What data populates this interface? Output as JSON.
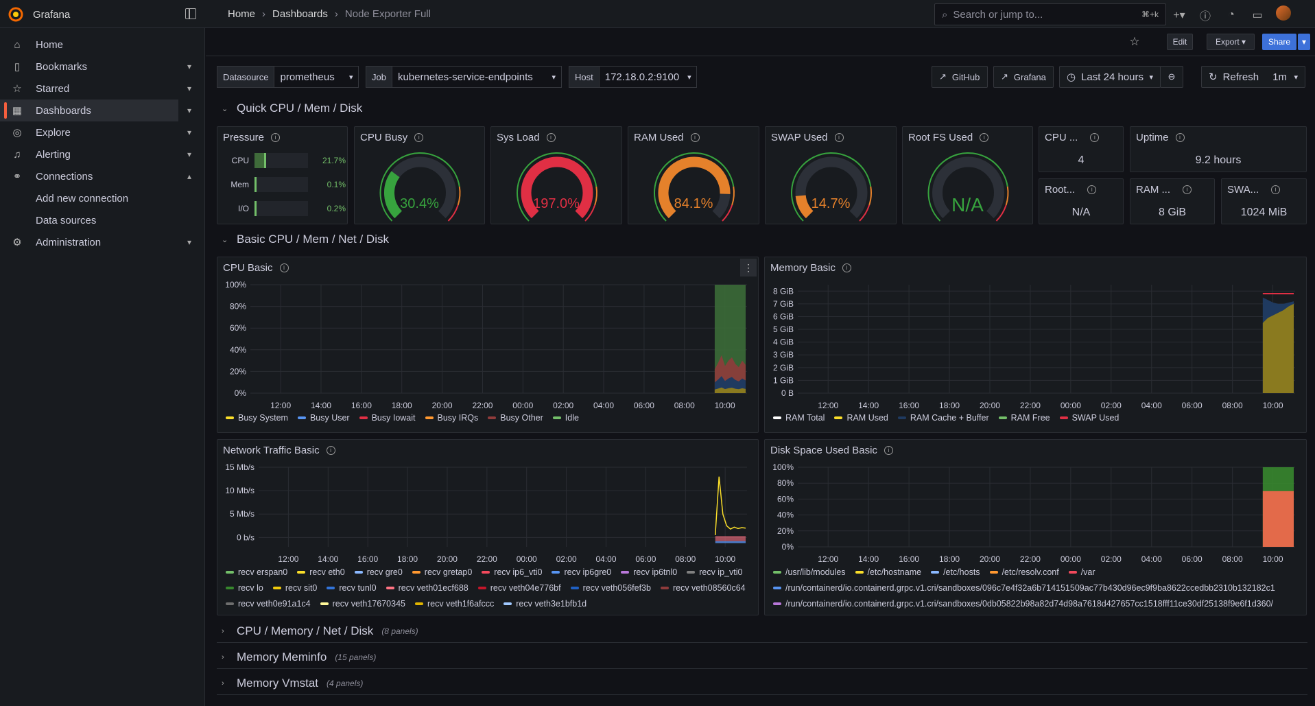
{
  "app": {
    "name": "Grafana"
  },
  "breadcrumb": [
    "Home",
    "Dashboards",
    "Node Exporter Full"
  ],
  "search": {
    "placeholder": "Search or jump to...",
    "shortcut": "⌘+k"
  },
  "nav": {
    "items": [
      {
        "label": "Home",
        "icon": "home-icon"
      },
      {
        "label": "Bookmarks",
        "icon": "bookmark-icon"
      },
      {
        "label": "Starred",
        "icon": "star-icon"
      },
      {
        "label": "Dashboards",
        "icon": "dashboards-icon"
      },
      {
        "label": "Explore",
        "icon": "compass-icon"
      },
      {
        "label": "Alerting",
        "icon": "bell-icon"
      },
      {
        "label": "Connections",
        "icon": "connections-icon"
      },
      {
        "label": "Add new connection"
      },
      {
        "label": "Data sources"
      },
      {
        "label": "Administration",
        "icon": "gear-icon"
      }
    ]
  },
  "toolbar": {
    "edit": "Edit",
    "export": "Export",
    "share": "Share"
  },
  "vars": {
    "datasource_label": "Datasource",
    "datasource": "prometheus",
    "job_label": "Job",
    "job": "kubernetes-service-endpoints",
    "host_label": "Host",
    "host": "172.18.0.2:9100"
  },
  "links": {
    "github": "GitHub",
    "grafana": "Grafana"
  },
  "time": {
    "range": "Last 24 hours",
    "refresh": "Refresh",
    "interval": "1m"
  },
  "rows": {
    "quick": "Quick CPU / Mem / Disk",
    "basic": "Basic CPU / Mem / Net / Disk",
    "collapsed": [
      {
        "title": "CPU / Memory / Net / Disk",
        "count": "(8 panels)"
      },
      {
        "title": "Memory Meminfo",
        "count": "(15 panels)"
      },
      {
        "title": "Memory Vmstat",
        "count": "(4 panels)"
      }
    ]
  },
  "pressure": {
    "title": "Pressure",
    "items": [
      {
        "label": "CPU",
        "value": "21.7%",
        "level": 0.217
      },
      {
        "label": "Mem",
        "value": "0.1%",
        "level": 0.001
      },
      {
        "label": "I/O",
        "value": "0.2%",
        "level": 0.002
      }
    ]
  },
  "gauges": [
    {
      "title": "CPU Busy",
      "value": "30.4%",
      "level": 0.304,
      "color": "#37a33e"
    },
    {
      "title": "Sys Load",
      "value": "197.0%",
      "level": 1.0,
      "color": "#e02f44"
    },
    {
      "title": "RAM Used",
      "value": "84.1%",
      "level": 0.841,
      "color": "#e5812b"
    },
    {
      "title": "SWAP Used",
      "value": "14.7%",
      "level": 0.147,
      "color": "#e5812b"
    },
    {
      "title": "Root FS Used",
      "value": "N/A",
      "level": 0,
      "color": "#37a33e"
    }
  ],
  "stats": [
    {
      "title": "CPU ...",
      "value": "4"
    },
    {
      "title": "Uptime",
      "value": "9.2 hours"
    },
    {
      "title": "Root...",
      "value": "N/A"
    },
    {
      "title": "RAM ...",
      "value": "8 GiB"
    },
    {
      "title": "SWA...",
      "value": "1024 MiB"
    }
  ],
  "panels": {
    "cpu": "CPU Basic",
    "mem": "Memory Basic",
    "net": "Network Traffic Basic",
    "disk": "Disk Space Used Basic"
  },
  "chart_data": [
    {
      "type": "area",
      "title": "CPU Basic",
      "x": [
        "12:00",
        "14:00",
        "16:00",
        "18:00",
        "20:00",
        "22:00",
        "00:00",
        "02:00",
        "04:00",
        "06:00",
        "08:00",
        "10:00"
      ],
      "yticks": [
        "0%",
        "20%",
        "40%",
        "60%",
        "80%",
        "100%"
      ],
      "ylim": [
        0,
        100
      ],
      "series": [
        {
          "name": "Busy System",
          "color": "#fade2a"
        },
        {
          "name": "Busy User",
          "color": "#5794f2"
        },
        {
          "name": "Busy Iowait",
          "color": "#e02f44"
        },
        {
          "name": "Busy IRQs",
          "color": "#ff9830"
        },
        {
          "name": "Busy Other",
          "color": "#8f3b3b"
        },
        {
          "name": "Idle",
          "color": "#73bf69"
        }
      ],
      "tail": {
        "from": "09:30",
        "idle": 100,
        "busy": [
          22,
          28,
          35,
          25,
          30,
          33,
          27,
          24,
          30,
          26
        ]
      }
    },
    {
      "type": "area",
      "title": "Memory Basic",
      "x": [
        "12:00",
        "14:00",
        "16:00",
        "18:00",
        "20:00",
        "22:00",
        "00:00",
        "02:00",
        "04:00",
        "06:00",
        "08:00",
        "10:00"
      ],
      "yticks": [
        "0 B",
        "1 GiB",
        "2 GiB",
        "3 GiB",
        "4 GiB",
        "5 GiB",
        "6 GiB",
        "7 GiB",
        "8 GiB"
      ],
      "ylim": [
        0,
        8.5
      ],
      "series": [
        {
          "name": "RAM Total",
          "color": "#ffffff"
        },
        {
          "name": "RAM Used",
          "color": "#fade2a"
        },
        {
          "name": "RAM Cache + Buffer",
          "color": "#1f3a60"
        },
        {
          "name": "RAM Free",
          "color": "#73bf69"
        },
        {
          "name": "SWAP Used",
          "color": "#e02f44"
        }
      ],
      "tail": {
        "from": "09:30",
        "total": 7.8,
        "used": [
          5.5,
          5.9,
          6.1,
          6.3,
          6.5,
          6.8,
          7.0
        ],
        "cache": [
          7.5,
          7.3,
          7.1,
          7.0,
          7.0,
          7.1,
          7.2
        ]
      }
    },
    {
      "type": "line",
      "title": "Network Traffic Basic",
      "x": [
        "12:00",
        "14:00",
        "16:00",
        "18:00",
        "20:00",
        "22:00",
        "00:00",
        "02:00",
        "04:00",
        "06:00",
        "08:00",
        "10:00"
      ],
      "yticks": [
        "0 b/s",
        "5 Mb/s",
        "10 Mb/s",
        "15 Mb/s"
      ],
      "ylim": [
        -2,
        15
      ],
      "series": [
        {
          "name": "recv erspan0",
          "color": "#73bf69"
        },
        {
          "name": "recv eth0",
          "color": "#fade2a"
        },
        {
          "name": "recv gre0",
          "color": "#8ab8ff"
        },
        {
          "name": "recv gretap0",
          "color": "#ff9830"
        },
        {
          "name": "recv ip6_vti0",
          "color": "#f2495c"
        },
        {
          "name": "recv ip6gre0",
          "color": "#5794f2"
        },
        {
          "name": "recv ip6tnl0",
          "color": "#b877d9"
        },
        {
          "name": "recv ip_vti0",
          "color": "#808080"
        },
        {
          "name": "recv lo",
          "color": "#37872d"
        },
        {
          "name": "recv sit0",
          "color": "#f2cc0c"
        },
        {
          "name": "recv tunl0",
          "color": "#3274d9"
        },
        {
          "name": "recv veth01ecf688",
          "color": "#ff7383"
        },
        {
          "name": "recv veth04e776bf",
          "color": "#c4162a"
        },
        {
          "name": "recv veth056fef3b",
          "color": "#1f60c4"
        },
        {
          "name": "recv veth08560c64",
          "color": "#8f3b3b"
        },
        {
          "name": "recv veth0e91a1c4",
          "color": "#6e6e6e"
        },
        {
          "name": "recv veth17670345",
          "color": "#fff899"
        },
        {
          "name": "recv veth1f6afccc",
          "color": "#e0b400"
        },
        {
          "name": "recv veth3e1bfb1d",
          "color": "#a0c8ff"
        }
      ],
      "tail": {
        "from": "09:30",
        "eth0": [
          0.5,
          13,
          5,
          2.5,
          1.8,
          2.2,
          1.9,
          2.1,
          2.0
        ]
      }
    },
    {
      "type": "area",
      "title": "Disk Space Used Basic",
      "x": [
        "12:00",
        "14:00",
        "16:00",
        "18:00",
        "20:00",
        "22:00",
        "00:00",
        "02:00",
        "04:00",
        "06:00",
        "08:00",
        "10:00"
      ],
      "yticks": [
        "0%",
        "20%",
        "40%",
        "60%",
        "80%",
        "100%"
      ],
      "ylim": [
        0,
        100
      ],
      "series": [
        {
          "name": "/usr/lib/modules",
          "color": "#73bf69"
        },
        {
          "name": "/etc/hostname",
          "color": "#fade2a"
        },
        {
          "name": "/etc/hosts",
          "color": "#8ab8ff"
        },
        {
          "name": "/etc/resolv.conf",
          "color": "#ff9830"
        },
        {
          "name": "/var",
          "color": "#f2495c"
        },
        {
          "name": "/run/containerd/io.containerd.grpc.v1.cri/sandboxes/096c7e4f32a6b714151509ac77b430d96ec9f9ba8622ccedbb2310b132182c1",
          "color": "#5794f2"
        },
        {
          "name": "/run/containerd/io.containerd.grpc.v1.cri/sandboxes/0db05822b98a82d74d98a7618d427657cc1518fff11ce30df25138f9e6f1d360/",
          "color": "#b877d9"
        }
      ],
      "tail": {
        "from": "09:30",
        "top": 100,
        "main": 70
      }
    }
  ]
}
